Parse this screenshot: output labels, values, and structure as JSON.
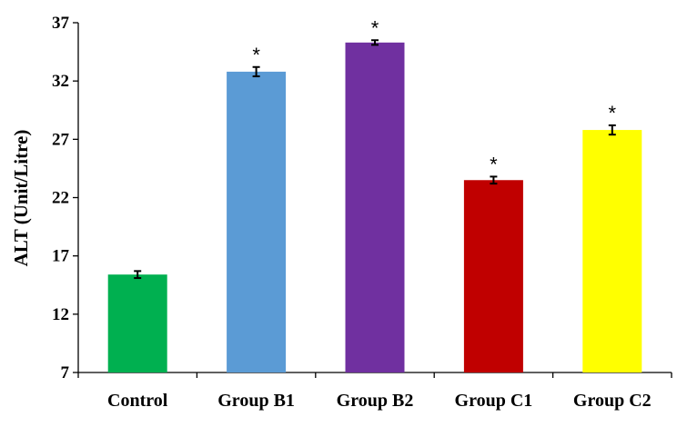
{
  "chart_data": {
    "type": "bar",
    "ylabel": "ALT (Unit/Litre)",
    "xlabel": "",
    "title": "",
    "ylim": [
      7,
      37
    ],
    "yticks": [
      7,
      12,
      17,
      22,
      27,
      32,
      37
    ],
    "grid": false,
    "legend": "none",
    "categories": [
      "Control",
      "Group B1",
      "Group B2",
      "Group C1",
      "Group C2"
    ],
    "values": [
      15.4,
      32.8,
      35.3,
      23.5,
      27.8
    ],
    "error": [
      0.3,
      0.4,
      0.2,
      0.3,
      0.4
    ],
    "significance": [
      "",
      "*",
      "*",
      "*",
      "*"
    ],
    "colors": [
      "#00B050",
      "#5B9BD5",
      "#7030A0",
      "#C00000",
      "#FFFF00"
    ]
  }
}
